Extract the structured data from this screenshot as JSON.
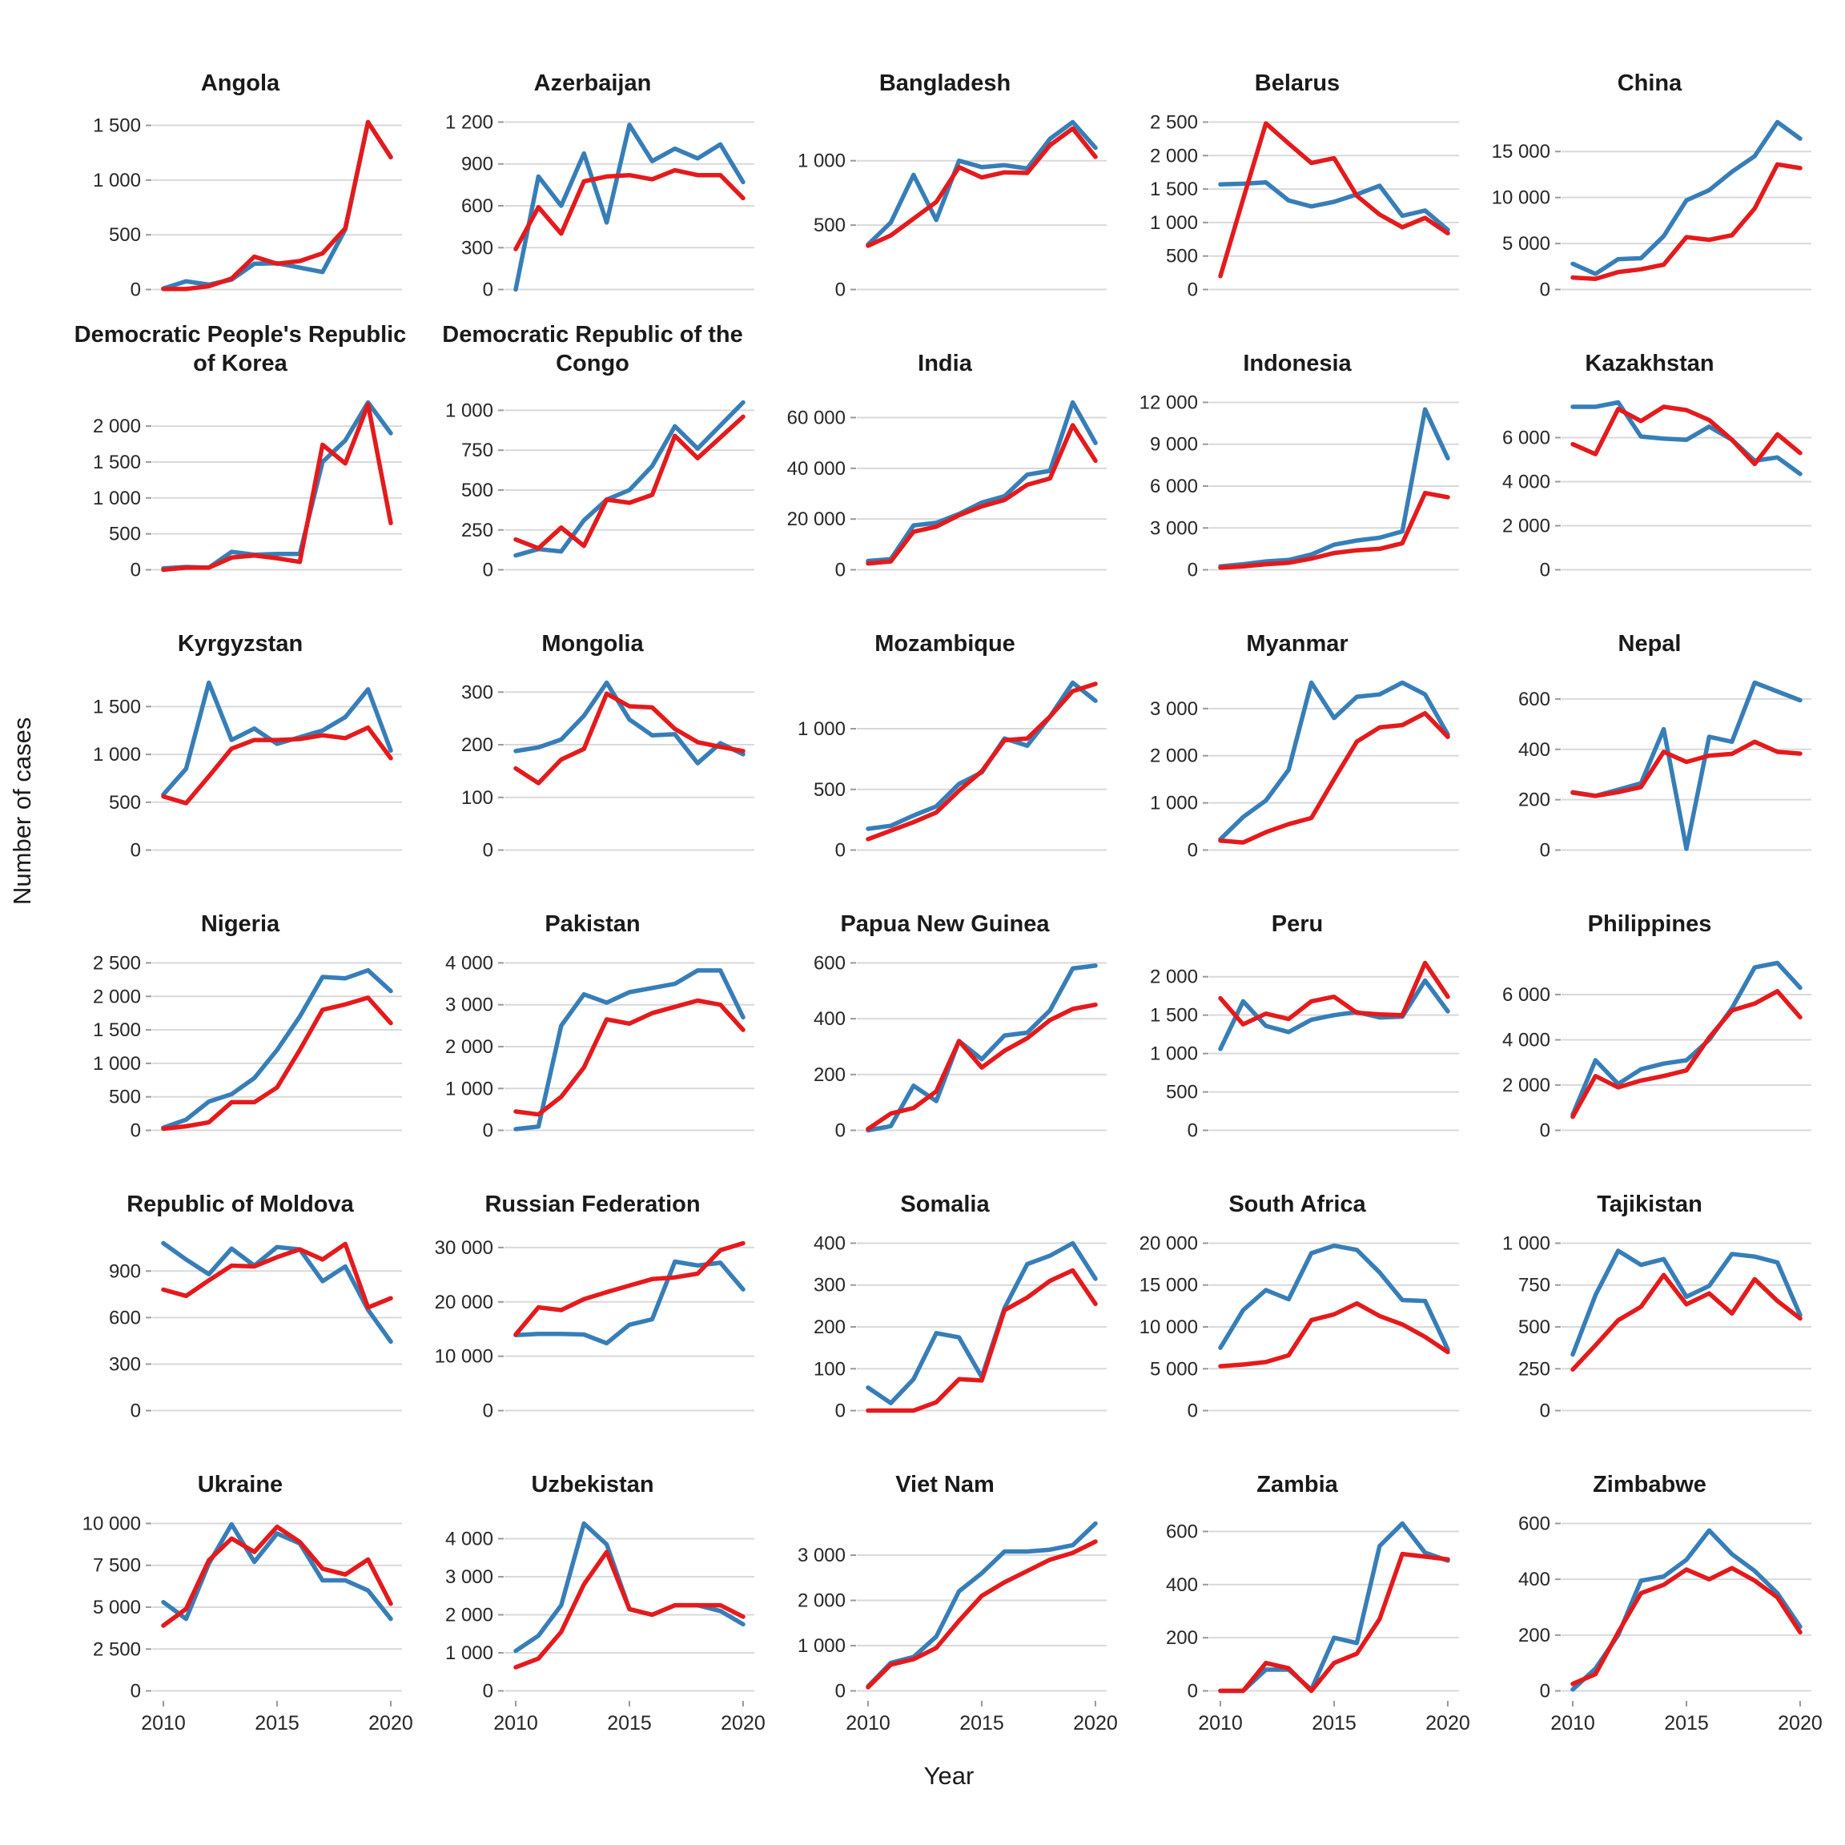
{
  "figure": {
    "y_axis_label": "Number of cases",
    "x_axis_label": "Year"
  },
  "style": {
    "series_blue": "#377EB8",
    "series_red": "#E41A1C",
    "gridline": "#D9D9D9",
    "tick_text": "#262626",
    "tick_mark": "#999999"
  },
  "chart_data": {
    "type": "line",
    "layout": "faceted small multiples, 6 rows x 5 columns, shared x axis 2010-2020",
    "grid": "horizontal gridlines only, white background",
    "legend": "none (two unlabeled series: blue and red)",
    "x": [
      2010,
      2011,
      2012,
      2013,
      2014,
      2015,
      2016,
      2017,
      2018,
      2019,
      2020
    ],
    "xticks": [
      2010,
      2015,
      2020
    ],
    "xlabel": "Year",
    "ylabel": "Number of cases",
    "series_names": [
      "blue",
      "red"
    ],
    "panels": [
      {
        "title": "Angola",
        "yticks": [
          0,
          500,
          1000,
          1500
        ],
        "blue": [
          10,
          75,
          45,
          90,
          235,
          240,
          200,
          160,
          550,
          1530,
          1210
        ],
        "red": [
          5,
          5,
          30,
          100,
          300,
          235,
          260,
          330,
          560,
          1530,
          1210
        ]
      },
      {
        "title": "Azerbaijan",
        "yticks": [
          0,
          300,
          600,
          900,
          1200
        ],
        "blue": [
          0,
          810,
          600,
          975,
          480,
          1180,
          920,
          1010,
          940,
          1040,
          770
        ],
        "red": [
          290,
          590,
          400,
          775,
          810,
          820,
          790,
          855,
          820,
          820,
          655
        ]
      },
      {
        "title": "Bangladesh",
        "yticks": [
          0,
          500,
          1000
        ],
        "blue": [
          350,
          520,
          890,
          540,
          1000,
          950,
          965,
          940,
          1170,
          1300,
          1100
        ],
        "red": [
          340,
          420,
          550,
          680,
          950,
          870,
          910,
          905,
          1120,
          1250,
          1030
        ]
      },
      {
        "title": "Belarus",
        "yticks": [
          0,
          500,
          1000,
          1500,
          2000,
          2500
        ],
        "blue": [
          1570,
          1580,
          1600,
          1330,
          1240,
          1310,
          1420,
          1550,
          1100,
          1180,
          890
        ],
        "red": [
          200,
          1350,
          2480,
          2180,
          1890,
          1960,
          1400,
          1120,
          930,
          1070,
          840
        ]
      },
      {
        "title": "China",
        "yticks": [
          0,
          5000,
          10000,
          15000
        ],
        "blue": [
          2800,
          1700,
          3300,
          3400,
          5800,
          9700,
          10800,
          12800,
          14500,
          18200,
          16400
        ],
        "red": [
          1300,
          1150,
          1900,
          2200,
          2700,
          5700,
          5400,
          5900,
          8800,
          13600,
          13200
        ]
      },
      {
        "title": "Democratic People's Republic of Korea",
        "yticks": [
          0,
          500,
          1000,
          1500,
          2000
        ],
        "blue": [
          20,
          40,
          30,
          250,
          210,
          220,
          220,
          1500,
          1800,
          2330,
          1900
        ],
        "red": [
          0,
          30,
          30,
          170,
          200,
          160,
          110,
          1740,
          1480,
          2300,
          650
        ]
      },
      {
        "title": "Democratic Republic of the Congo",
        "yticks": [
          0,
          250,
          500,
          750,
          1000
        ],
        "blue": [
          90,
          130,
          115,
          310,
          440,
          500,
          650,
          900,
          760,
          905,
          1050
        ],
        "red": [
          190,
          135,
          265,
          150,
          440,
          420,
          470,
          840,
          700,
          830,
          960
        ]
      },
      {
        "title": "India",
        "yticks": [
          0,
          20000,
          40000,
          60000
        ],
        "blue": [
          3500,
          4200,
          17500,
          18500,
          22000,
          26500,
          29000,
          37500,
          39000,
          66000,
          50000
        ],
        "red": [
          2500,
          3300,
          15000,
          17000,
          21500,
          25000,
          27500,
          33500,
          36000,
          57000,
          43000
        ]
      },
      {
        "title": "Indonesia",
        "yticks": [
          0,
          3000,
          6000,
          9000,
          12000
        ],
        "blue": [
          250,
          400,
          600,
          700,
          1100,
          1800,
          2100,
          2300,
          2750,
          11500,
          8000
        ],
        "red": [
          150,
          250,
          400,
          500,
          800,
          1200,
          1400,
          1500,
          1900,
          5500,
          5200
        ]
      },
      {
        "title": "Kazakhstan",
        "yticks": [
          0,
          2000,
          4000,
          6000
        ],
        "blue": [
          7400,
          7400,
          7600,
          6050,
          5950,
          5900,
          6500,
          5900,
          4950,
          5100,
          4350
        ],
        "red": [
          5700,
          5250,
          7300,
          6750,
          7400,
          7250,
          6800,
          5900,
          4800,
          6150,
          5300
        ]
      },
      {
        "title": "Kyrgyzstan",
        "yticks": [
          0,
          500,
          1000,
          1500
        ],
        "blue": [
          580,
          850,
          1750,
          1150,
          1270,
          1110,
          1180,
          1250,
          1390,
          1680,
          1040
        ],
        "red": [
          560,
          490,
          770,
          1060,
          1150,
          1150,
          1160,
          1200,
          1170,
          1280,
          960
        ]
      },
      {
        "title": "Mongolia",
        "yticks": [
          0,
          100,
          200,
          300
        ],
        "blue": [
          188,
          195,
          210,
          255,
          318,
          248,
          218,
          220,
          165,
          203,
          182
        ],
        "red": [
          155,
          127,
          172,
          192,
          297,
          273,
          271,
          230,
          205,
          196,
          188
        ]
      },
      {
        "title": "Mozambique",
        "yticks": [
          0,
          500,
          1000
        ],
        "blue": [
          175,
          200,
          285,
          360,
          545,
          640,
          920,
          860,
          1100,
          1380,
          1230
        ],
        "red": [
          90,
          160,
          230,
          310,
          490,
          650,
          905,
          920,
          1100,
          1310,
          1370
        ]
      },
      {
        "title": "Myanmar",
        "yticks": [
          0,
          1000,
          2000,
          3000
        ],
        "blue": [
          230,
          700,
          1050,
          1700,
          3550,
          2800,
          3250,
          3300,
          3550,
          3300,
          2450
        ],
        "red": [
          200,
          160,
          380,
          550,
          680,
          1500,
          2300,
          2600,
          2650,
          2900,
          2400
        ]
      },
      {
        "title": "Nepal",
        "yticks": [
          0,
          200,
          400,
          600
        ],
        "blue": [
          230,
          215,
          240,
          265,
          480,
          5,
          450,
          430,
          665,
          630,
          595
        ],
        "red": [
          228,
          215,
          230,
          250,
          390,
          350,
          375,
          382,
          430,
          390,
          383
        ]
      },
      {
        "title": "Nigeria",
        "yticks": [
          0,
          500,
          1000,
          1500,
          2000,
          2500
        ],
        "blue": [
          40,
          160,
          430,
          540,
          780,
          1200,
          1700,
          2290,
          2270,
          2390,
          2080
        ],
        "red": [
          25,
          60,
          120,
          420,
          420,
          640,
          1200,
          1800,
          1880,
          1980,
          1600
        ]
      },
      {
        "title": "Pakistan",
        "yticks": [
          0,
          1000,
          2000,
          3000,
          4000
        ],
        "blue": [
          30,
          90,
          2500,
          3250,
          3050,
          3300,
          3400,
          3500,
          3820,
          3820,
          2700
        ],
        "red": [
          450,
          380,
          800,
          1500,
          2650,
          2550,
          2800,
          2950,
          3100,
          3000,
          2400
        ]
      },
      {
        "title": "Papua New Guinea",
        "yticks": [
          0,
          200,
          400,
          600
        ],
        "blue": [
          0,
          15,
          160,
          105,
          320,
          255,
          340,
          350,
          430,
          580,
          590
        ],
        "red": [
          5,
          60,
          80,
          140,
          320,
          225,
          285,
          330,
          395,
          435,
          450
        ]
      },
      {
        "title": "Peru",
        "yticks": [
          0,
          500,
          1000,
          1500,
          2000
        ],
        "blue": [
          1060,
          1680,
          1360,
          1280,
          1440,
          1500,
          1540,
          1470,
          1480,
          1950,
          1550
        ],
        "red": [
          1720,
          1380,
          1520,
          1450,
          1680,
          1740,
          1530,
          1510,
          1500,
          2180,
          1740
        ]
      },
      {
        "title": "Philippines",
        "yticks": [
          0,
          2000,
          4000,
          6000
        ],
        "blue": [
          700,
          3100,
          2050,
          2700,
          2950,
          3100,
          4000,
          5400,
          7200,
          7400,
          6300
        ],
        "red": [
          600,
          2400,
          1900,
          2200,
          2400,
          2650,
          4100,
          5300,
          5600,
          6150,
          5000
        ]
      },
      {
        "title": "Republic of Moldova",
        "yticks": [
          0,
          300,
          600,
          900
        ],
        "blue": [
          1080,
          975,
          880,
          1045,
          935,
          1055,
          1040,
          835,
          930,
          650,
          445
        ],
        "red": [
          780,
          740,
          840,
          935,
          930,
          990,
          1040,
          975,
          1075,
          665,
          725
        ]
      },
      {
        "title": "Russian Federation",
        "yticks": [
          0,
          10000,
          20000,
          30000
        ],
        "blue": [
          13900,
          14100,
          14100,
          14000,
          12400,
          15800,
          16800,
          27400,
          26700,
          27200,
          22300
        ],
        "red": [
          14000,
          19000,
          18500,
          20500,
          21800,
          23000,
          24200,
          24500,
          25200,
          29500,
          30800
        ]
      },
      {
        "title": "Somalia",
        "yticks": [
          0,
          100,
          200,
          300,
          400
        ],
        "blue": [
          55,
          18,
          75,
          185,
          175,
          80,
          245,
          350,
          370,
          400,
          315
        ],
        "red": [
          0,
          0,
          0,
          20,
          75,
          72,
          240,
          270,
          310,
          335,
          255
        ]
      },
      {
        "title": "South Africa",
        "yticks": [
          0,
          5000,
          10000,
          15000,
          20000
        ],
        "blue": [
          7500,
          12000,
          14400,
          13300,
          18800,
          19700,
          19200,
          16500,
          13200,
          13100,
          7300
        ],
        "red": [
          5300,
          5500,
          5800,
          6600,
          10800,
          11500,
          12800,
          11300,
          10300,
          8800,
          7000
        ]
      },
      {
        "title": "Tajikistan",
        "yticks": [
          0,
          250,
          500,
          750,
          1000
        ],
        "blue": [
          335,
          690,
          955,
          870,
          905,
          680,
          745,
          935,
          920,
          885,
          570
        ],
        "red": [
          245,
          390,
          540,
          620,
          810,
          635,
          700,
          580,
          785,
          655,
          550
        ]
      },
      {
        "title": "Ukraine",
        "yticks": [
          0,
          2500,
          5000,
          7500,
          10000
        ],
        "blue": [
          5300,
          4300,
          7600,
          9950,
          7700,
          9400,
          8800,
          6600,
          6600,
          6000,
          4300
        ],
        "red": [
          3900,
          4900,
          7800,
          9100,
          8300,
          9800,
          8900,
          7300,
          6950,
          7850,
          5200
        ]
      },
      {
        "title": "Uzbekistan",
        "yticks": [
          0,
          1000,
          2000,
          3000,
          4000
        ],
        "blue": [
          1050,
          1450,
          2250,
          4400,
          3850,
          2150,
          2000,
          2250,
          2250,
          2100,
          1750
        ],
        "red": [
          620,
          850,
          1550,
          2800,
          3650,
          2150,
          2000,
          2250,
          2250,
          2250,
          1950
        ]
      },
      {
        "title": "Viet Nam",
        "yticks": [
          0,
          1000,
          2000,
          3000
        ],
        "blue": [
          100,
          620,
          750,
          1200,
          2200,
          2600,
          3080,
          3080,
          3120,
          3220,
          3700
        ],
        "red": [
          80,
          580,
          700,
          950,
          1550,
          2100,
          2400,
          2650,
          2900,
          3050,
          3300
        ]
      },
      {
        "title": "Zambia",
        "yticks": [
          0,
          200,
          400,
          600
        ],
        "blue": [
          0,
          0,
          80,
          80,
          5,
          200,
          180,
          545,
          630,
          520,
          490
        ],
        "red": [
          0,
          0,
          105,
          85,
          0,
          105,
          140,
          270,
          515,
          505,
          495
        ]
      },
      {
        "title": "Zimbabwe",
        "yticks": [
          0,
          200,
          400,
          600
        ],
        "blue": [
          5,
          80,
          200,
          395,
          410,
          470,
          575,
          490,
          430,
          350,
          230
        ],
        "red": [
          25,
          60,
          210,
          350,
          380,
          435,
          400,
          440,
          395,
          335,
          210
        ]
      }
    ]
  }
}
